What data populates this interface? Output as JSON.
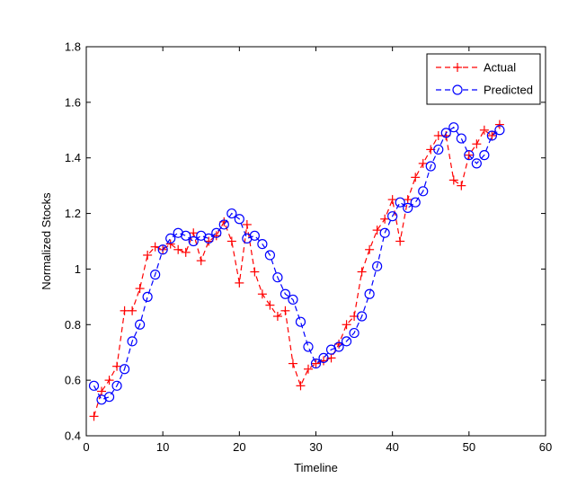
{
  "chart_data": {
    "type": "line",
    "title": "",
    "xlabel": "Timeline",
    "ylabel": "Normalized Stocks",
    "xlim": [
      0,
      60
    ],
    "ylim": [
      0.4,
      1.8
    ],
    "xticks": [
      0,
      10,
      20,
      30,
      40,
      50,
      60
    ],
    "yticks": [
      0.4,
      0.6,
      0.8,
      1,
      1.2,
      1.4,
      1.6,
      1.8
    ],
    "xtick_labels": [
      "0",
      "10",
      "20",
      "30",
      "40",
      "50",
      "60"
    ],
    "ytick_labels": [
      "0.4",
      "0.6",
      "0.8",
      "1",
      "1.2",
      "1.4",
      "1.6",
      "1.8"
    ],
    "grid": false,
    "legend_position": "top-right",
    "x": [
      1,
      2,
      3,
      4,
      5,
      6,
      7,
      8,
      9,
      10,
      11,
      12,
      13,
      14,
      15,
      16,
      17,
      18,
      19,
      20,
      21,
      22,
      23,
      24,
      25,
      26,
      27,
      28,
      29,
      30,
      31,
      32,
      33,
      34,
      35,
      36,
      37,
      38,
      39,
      40,
      41,
      42,
      43,
      44,
      45,
      46,
      47,
      48,
      49,
      50,
      51,
      52,
      53,
      54
    ],
    "series": [
      {
        "name": "Actual",
        "color": "#ff0000",
        "marker": "plus",
        "dash": true,
        "values": [
          0.47,
          0.56,
          0.6,
          0.65,
          0.85,
          0.85,
          0.93,
          1.05,
          1.08,
          1.07,
          1.09,
          1.07,
          1.06,
          1.13,
          1.03,
          1.1,
          1.12,
          1.17,
          1.1,
          0.95,
          1.16,
          0.99,
          0.91,
          0.87,
          0.83,
          0.85,
          0.66,
          0.58,
          0.64,
          0.66,
          0.67,
          0.68,
          0.73,
          0.8,
          0.83,
          0.99,
          1.07,
          1.14,
          1.18,
          1.25,
          1.1,
          1.25,
          1.33,
          1.38,
          1.43,
          1.48,
          1.48,
          1.32,
          1.3,
          1.41,
          1.45,
          1.5,
          1.48,
          1.52
        ]
      },
      {
        "name": "Predicted",
        "color": "#0000ff",
        "marker": "circle",
        "dash": true,
        "values": [
          0.58,
          0.53,
          0.54,
          0.58,
          0.64,
          0.74,
          0.8,
          0.9,
          0.98,
          1.07,
          1.11,
          1.13,
          1.12,
          1.1,
          1.12,
          1.11,
          1.13,
          1.16,
          1.2,
          1.18,
          1.11,
          1.12,
          1.09,
          1.05,
          0.97,
          0.91,
          0.89,
          0.81,
          0.72,
          0.66,
          0.68,
          0.71,
          0.72,
          0.74,
          0.77,
          0.83,
          0.91,
          1.01,
          1.13,
          1.19,
          1.24,
          1.22,
          1.24,
          1.28,
          1.37,
          1.43,
          1.49,
          1.51,
          1.47,
          1.41,
          1.38,
          1.41,
          1.48,
          1.5
        ]
      }
    ]
  }
}
